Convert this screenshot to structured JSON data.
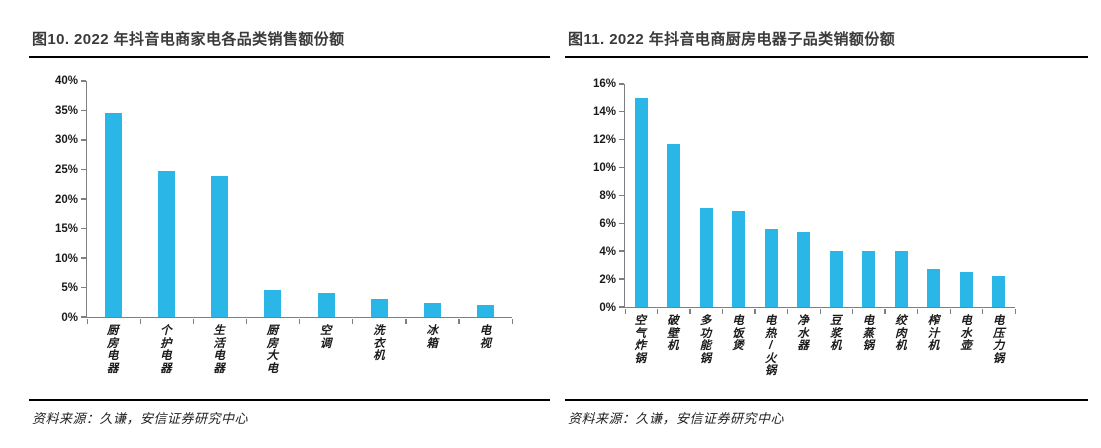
{
  "page": {
    "background": "#ffffff"
  },
  "chart_data": [
    {
      "type": "bar",
      "title": "图10. 2022 年抖音电商家电各品类销售额份额",
      "source": "资料来源：久谦，安信证券研究中心",
      "categories": [
        "厨房电器",
        "个护电器",
        "生活电器",
        "厨房大电",
        "空调",
        "洗衣机",
        "冰箱",
        "电视"
      ],
      "values": [
        34.5,
        24.8,
        23.9,
        4.5,
        4.0,
        3.1,
        2.4,
        2.1
      ],
      "unit": "%",
      "xlabel": "",
      "ylabel": "",
      "ylim": [
        0,
        40
      ],
      "ytick_step": 5,
      "grid": false,
      "legend": "none",
      "bar_color": "#2BB6E8",
      "axis_color": "#7f7f7f",
      "xlabel_orientation": "vertical-stacked"
    },
    {
      "type": "bar",
      "title": "图11. 2022 年抖音电商厨房电器子品类销额份额",
      "source": "资料来源：久谦，安信证券研究中心",
      "categories": [
        "空气炸锅",
        "破壁机",
        "多功能锅",
        "电饭煲",
        "电热/火锅",
        "净水器",
        "豆浆机",
        "电蒸锅",
        "绞肉机",
        "榨汁机",
        "电水壶",
        "电压力锅"
      ],
      "values": [
        15.0,
        11.7,
        7.1,
        6.9,
        5.6,
        5.4,
        4.0,
        4.0,
        4.0,
        2.7,
        2.5,
        2.2
      ],
      "unit": "%",
      "xlabel": "",
      "ylabel": "",
      "ylim": [
        0,
        16
      ],
      "ytick_step": 2,
      "grid": false,
      "legend": "none",
      "bar_color": "#2BB6E8",
      "axis_color": "#7f7f7f",
      "xlabel_orientation": "vertical-stacked"
    }
  ]
}
